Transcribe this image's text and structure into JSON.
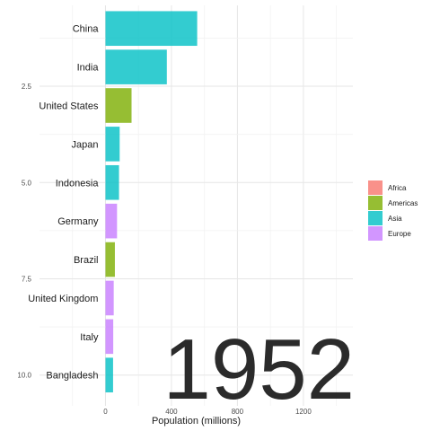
{
  "chart_data": {
    "type": "bar",
    "orientation": "horizontal",
    "title": "",
    "xlabel": "Population (millions)",
    "ylabel": "",
    "year_label": "1952",
    "categories": [
      "China",
      "India",
      "United States",
      "Japan",
      "Indonesia",
      "Germany",
      "Brazil",
      "United Kingdom",
      "Italy",
      "Bangladesh"
    ],
    "values": [
      556,
      372,
      158,
      86,
      82,
      70,
      57,
      50,
      47,
      46
    ],
    "continents": [
      "Asia",
      "Asia",
      "Americas",
      "Asia",
      "Asia",
      "Europe",
      "Americas",
      "Europe",
      "Europe",
      "Asia"
    ],
    "xlim": [
      -400,
      1500
    ],
    "xticks": [
      0,
      400,
      800,
      1200
    ],
    "ylim": [
      0.4,
      10.8
    ],
    "yticks": [
      2.5,
      5.0,
      7.5,
      10.0
    ],
    "ytick_labels": [
      "2.5",
      "5.0",
      "7.5",
      "10.0"
    ],
    "grid": true,
    "legend_position": "right",
    "legend": [
      {
        "name": "Africa",
        "color": "#F8766D"
      },
      {
        "name": "Americas",
        "color": "#7CAE00"
      },
      {
        "name": "Asia",
        "color": "#00BFC4"
      },
      {
        "name": "Europe",
        "color": "#C77CFF"
      }
    ]
  }
}
